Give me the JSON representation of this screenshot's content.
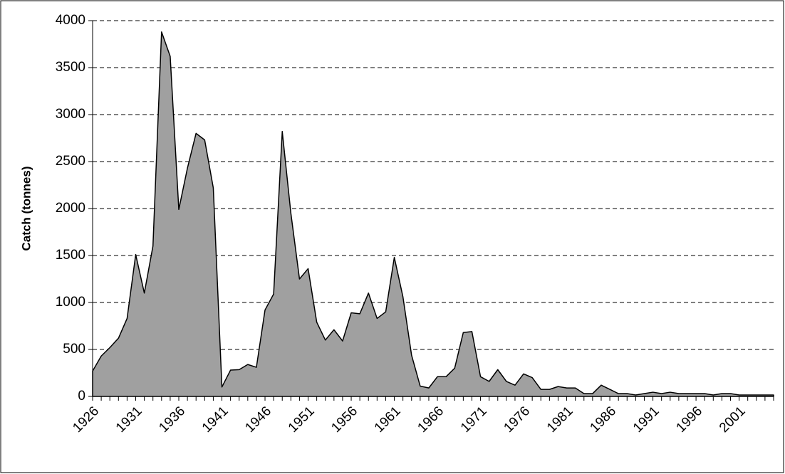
{
  "chart_data": {
    "type": "area",
    "y_label": "Catch (tonnes)",
    "x": [
      1926,
      1927,
      1928,
      1929,
      1930,
      1931,
      1932,
      1933,
      1934,
      1935,
      1936,
      1937,
      1938,
      1939,
      1940,
      1941,
      1942,
      1943,
      1944,
      1945,
      1946,
      1947,
      1948,
      1949,
      1950,
      1951,
      1952,
      1953,
      1954,
      1955,
      1956,
      1957,
      1958,
      1959,
      1960,
      1961,
      1962,
      1963,
      1964,
      1965,
      1966,
      1967,
      1968,
      1969,
      1970,
      1971,
      1972,
      1973,
      1974,
      1975,
      1976,
      1977,
      1978,
      1979,
      1980,
      1981,
      1982,
      1983,
      1984,
      1985,
      1986,
      1987,
      1988,
      1989,
      1990,
      1991,
      1992,
      1993,
      1994,
      1995,
      1996,
      1997,
      1998,
      1999,
      2000,
      2001,
      2002,
      2003,
      2004,
      2005
    ],
    "values": [
      270,
      430,
      520,
      620,
      830,
      1510,
      1100,
      1600,
      3880,
      3620,
      1990,
      2430,
      2800,
      2730,
      2220,
      100,
      280,
      285,
      340,
      310,
      920,
      1090,
      2820,
      1950,
      1250,
      1360,
      790,
      600,
      710,
      590,
      890,
      880,
      1100,
      830,
      900,
      1480,
      1060,
      440,
      110,
      90,
      210,
      210,
      300,
      680,
      690,
      210,
      160,
      285,
      160,
      120,
      240,
      200,
      75,
      75,
      105,
      90,
      90,
      30,
      30,
      120,
      75,
      30,
      30,
      15,
      30,
      45,
      30,
      45,
      30,
      30,
      30,
      30,
      15,
      30,
      30,
      15,
      15,
      15,
      15,
      15
    ],
    "color": "#a0a0a0",
    "xlim": [
      1926,
      2005
    ],
    "xticks": [
      1926,
      1931,
      1936,
      1941,
      1946,
      1951,
      1956,
      1961,
      1966,
      1971,
      1976,
      1981,
      1986,
      1991,
      1996,
      2001
    ],
    "ylim": [
      0,
      4000
    ],
    "yticks": [
      0,
      500,
      1000,
      1500,
      2000,
      2500,
      3000,
      3500,
      4000
    ],
    "grid": true
  }
}
